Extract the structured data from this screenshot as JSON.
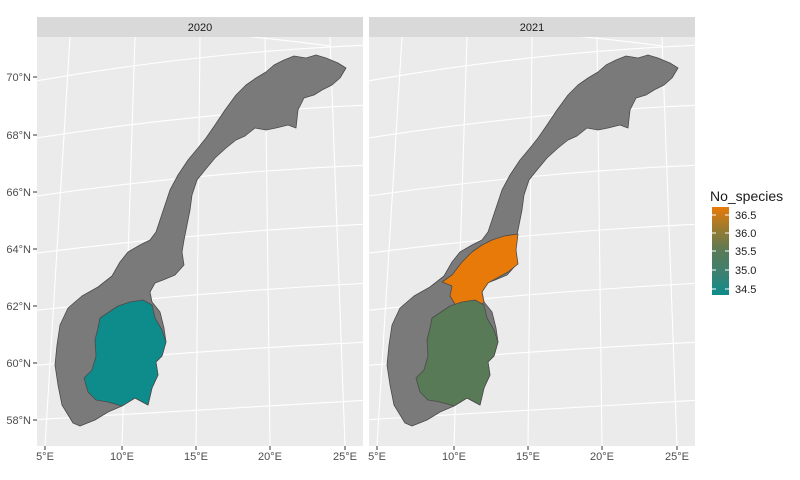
{
  "chart_data": {
    "type": "choropleth",
    "facets": [
      {
        "label": "2020",
        "regions": [
          {
            "name": "south-east-region",
            "value": 34.5,
            "color": "#0e8c8c"
          }
        ]
      },
      {
        "label": "2021",
        "regions": [
          {
            "name": "south-east-region",
            "value": 35.5,
            "color": "#587a57"
          },
          {
            "name": "trondelag-region",
            "value": 36.6,
            "color": "#e87a0a"
          }
        ]
      }
    ],
    "x_ticks": [
      {
        "lon": 5,
        "label": "5°E"
      },
      {
        "lon": 10,
        "label": "10°E"
      },
      {
        "lon": 15,
        "label": "15°E"
      },
      {
        "lon": 20,
        "label": "20°E"
      },
      {
        "lon": 25,
        "label": "25°E"
      }
    ],
    "y_ticks": [
      {
        "lat": 58,
        "label": "58°N"
      },
      {
        "lat": 60,
        "label": "60°N"
      },
      {
        "lat": 62,
        "label": "62°N"
      },
      {
        "lat": 64,
        "label": "64°N"
      },
      {
        "lat": 66,
        "label": "66°N"
      },
      {
        "lat": 68,
        "label": "68°N"
      },
      {
        "lat": 70,
        "label": "70°N"
      }
    ],
    "legend": {
      "title": "No_species",
      "placement": "right",
      "breaks": [
        {
          "value": 36.5,
          "label": "36.5"
        },
        {
          "value": 36.0,
          "label": "36.0"
        },
        {
          "value": 35.5,
          "label": "35.5"
        },
        {
          "value": 35.0,
          "label": "35.0"
        },
        {
          "value": 34.5,
          "label": "34.5"
        }
      ],
      "colors": [
        "#e87a0a",
        "#997a30",
        "#587a57",
        "#3e8070",
        "#0e8c8c"
      ],
      "land_color": "#7a7a7a"
    }
  }
}
